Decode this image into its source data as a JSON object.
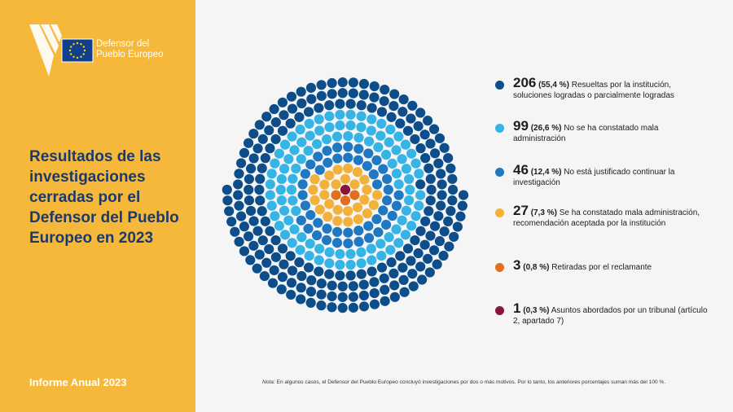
{
  "sidebar": {
    "logo_line1": "Defensor del",
    "logo_line2": "Pueblo Europeo",
    "title": "Resultados de las investigaciones cerradas por el Defensor del Pueblo Europeo en 2023",
    "footer": "Informe Anual 2023"
  },
  "legend": [
    {
      "value": "206",
      "pct": "(55,4 %)",
      "label": "Resueltas por la institución, soluciones logradas o parcialmente logradas"
    },
    {
      "value": "99",
      "pct": "(26,6 %)",
      "label": "No se ha constatado mala administración"
    },
    {
      "value": "46",
      "pct": "(12,4 %)",
      "label": "No está justificado continuar la investigación"
    },
    {
      "value": "27",
      "pct": "(7,3 %)",
      "label": "Se ha constatado mala administración, recomendación aceptada por la institución"
    },
    {
      "value": "3",
      "pct": "(0,8 %)",
      "label": "Retiradas por el reclamante"
    },
    {
      "value": "1",
      "pct": "(0,3 %)",
      "label": "Asuntos abordados por un tribunal (artículo 2, apartado 7)"
    }
  ],
  "note": {
    "prefix": "Nota:",
    "text": " En algunos casos, el Defensor del Pueblo Europeo concluyó investigaciones por dos o más motivos. Por lo tanto, los anteriores porcentajes suman más del 100 %."
  },
  "colors": {
    "sidebar_bg": "#f5b83a",
    "title": "#1a3a6e",
    "series": [
      "#0d4e8a",
      "#36b4e5",
      "#1f78c1",
      "#f2b13a",
      "#e07020",
      "#8b1538"
    ]
  },
  "chart_data": {
    "type": "pie",
    "style": "concentric dot rings (one dot per case)",
    "series": [
      {
        "name": "Resueltas por la institución, soluciones logradas o parcialmente logradas",
        "value": 206,
        "percent": 55.4,
        "color": "#0d4e8a"
      },
      {
        "name": "No se ha constatado mala administración",
        "value": 99,
        "percent": 26.6,
        "color": "#36b4e5"
      },
      {
        "name": "No está justificado continuar la investigación",
        "value": 46,
        "percent": 12.4,
        "color": "#1f78c1"
      },
      {
        "name": "Se ha constatado mala administración, recomendación aceptada por la institución",
        "value": 27,
        "percent": 7.3,
        "color": "#f2b13a"
      },
      {
        "name": "Retiradas por el reclamante",
        "value": 3,
        "percent": 0.8,
        "color": "#e07020"
      },
      {
        "name": "Asuntos abordados por un tribunal (artículo 2, apartado 7)",
        "value": 1,
        "percent": 0.3,
        "color": "#8b1538"
      }
    ],
    "legend_position": "right"
  }
}
